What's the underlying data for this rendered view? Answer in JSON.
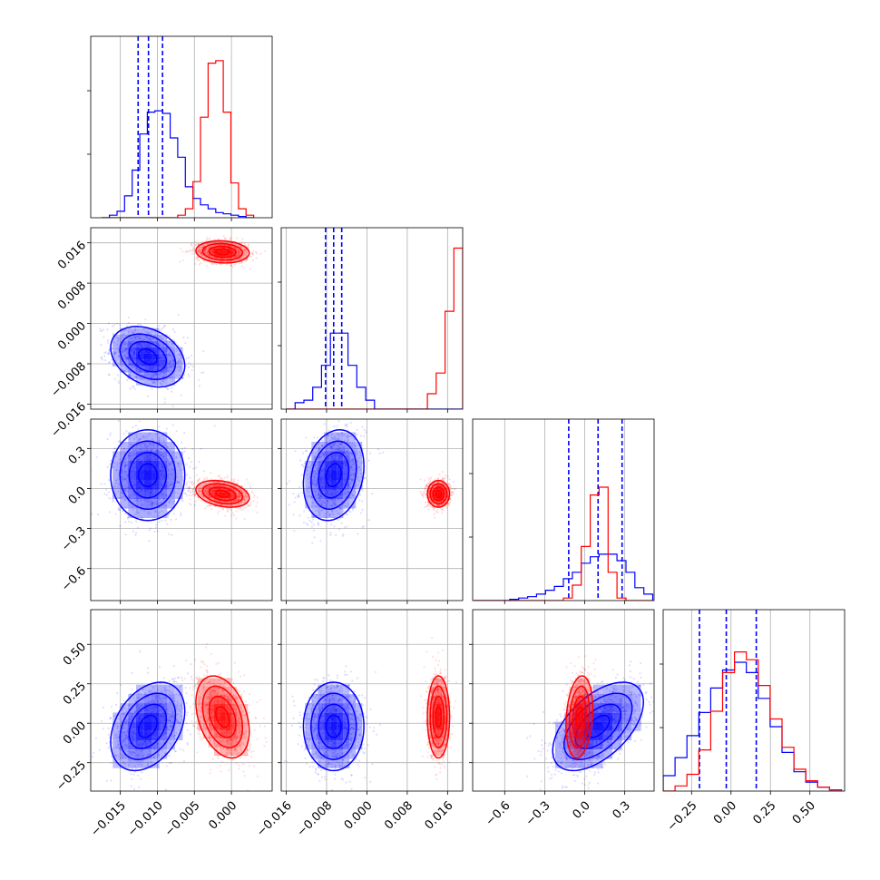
{
  "chart_data": {
    "type": "corner",
    "parameters": [
      {
        "index": 0,
        "range": [
          -0.019,
          0.0055
        ],
        "ticks": [
          -0.015,
          -0.01,
          -0.005,
          0.0
        ],
        "tick_labels": [
          "−0.015",
          "−0.010",
          "−0.005",
          "0.000"
        ]
      },
      {
        "index": 1,
        "range": [
          -0.017,
          0.019
        ],
        "ticks": [
          -0.016,
          -0.008,
          0.0,
          0.008,
          0.016
        ],
        "tick_labels": [
          "−0.016",
          "−0.008",
          "0.000",
          "0.008",
          "0.016"
        ]
      },
      {
        "index": 2,
        "range": [
          -0.84,
          0.52
        ],
        "ticks": [
          -0.6,
          -0.3,
          0.0,
          0.3
        ],
        "tick_labels": [
          "−0.6",
          "−0.3",
          "0.0",
          "0.3"
        ]
      },
      {
        "index": 3,
        "range": [
          -0.43,
          0.72
        ],
        "ticks": [
          -0.25,
          0.0,
          0.25,
          0.5
        ],
        "tick_labels": [
          "−0.25",
          "0.00",
          "0.25",
          "0.50"
        ]
      }
    ],
    "series": [
      {
        "color": "#0000ff",
        "quantiles": [
          [
            -0.0126,
            -0.0112,
            -0.0093
          ],
          [
            -0.0082,
            -0.0066,
            -0.005
          ],
          [
            -0.12,
            0.1,
            0.28
          ],
          [
            -0.2,
            -0.03,
            0.16
          ]
        ],
        "histograms": [
          {
            "edges": [
              -0.0175,
              0.003
            ],
            "counts": [
              0.0,
              0.02,
              0.05,
              0.17,
              0.37,
              0.65,
              0.82,
              0.83,
              0.81,
              0.62,
              0.47,
              0.24,
              0.15,
              0.1,
              0.07,
              0.04,
              0.03,
              0.02,
              0.01,
              0.0
            ]
          },
          {
            "edges": [
              -0.016,
              0.019
            ],
            "counts": [
              0.0,
              0.05,
              0.07,
              0.17,
              0.34,
              0.59,
              0.59,
              0.34,
              0.17,
              0.07,
              0.0,
              0.0,
              0.0,
              0.0,
              0.0,
              0.0,
              0.0,
              0.0,
              0.0,
              0.0
            ]
          },
          {
            "edges": [
              -0.83,
              0.51
            ],
            "counts": [
              0.0,
              0.0,
              0.0,
              0.0,
              0.01,
              0.02,
              0.03,
              0.05,
              0.08,
              0.11,
              0.17,
              0.22,
              0.29,
              0.34,
              0.36,
              0.36,
              0.31,
              0.22,
              0.1,
              0.05
            ]
          },
          {
            "edges": [
              -0.43,
              0.7
            ],
            "counts": [
              0.12,
              0.26,
              0.43,
              0.61,
              0.8,
              0.94,
              1.0,
              0.92,
              0.72,
              0.5,
              0.3,
              0.15,
              0.07,
              0.03,
              0.01
            ]
          }
        ]
      },
      {
        "color": "#ff0000",
        "quantiles": null,
        "histograms": [
          {
            "edges": [
              -0.0175,
              0.003
            ],
            "counts": [
              0.0,
              0.0,
              0.0,
              0.0,
              0.0,
              0.0,
              0.0,
              0.0,
              0.0,
              0.0,
              0.02,
              0.07,
              0.28,
              0.78,
              1.2,
              1.22,
              0.82,
              0.27,
              0.07,
              0.02
            ]
          },
          {
            "edges": [
              -0.016,
              0.019
            ],
            "counts": [
              0.0,
              0.0,
              0.0,
              0.0,
              0.0,
              0.0,
              0.0,
              0.0,
              0.0,
              0.0,
              0.0,
              0.0,
              0.0,
              0.0,
              0.0,
              0.0,
              0.12,
              0.28,
              0.76,
              1.25
            ]
          },
          {
            "edges": [
              -0.83,
              0.51
            ],
            "counts": [
              0.0,
              0.0,
              0.0,
              0.0,
              0.0,
              0.0,
              0.0,
              0.0,
              0.0,
              0.0,
              0.02,
              0.12,
              0.42,
              0.82,
              0.88,
              0.22,
              0.02,
              0.0,
              0.0,
              0.0
            ]
          },
          {
            "edges": [
              -0.43,
              0.7
            ],
            "counts": [
              0.0,
              0.04,
              0.13,
              0.32,
              0.62,
              0.92,
              1.08,
              1.02,
              0.82,
              0.56,
              0.34,
              0.17,
              0.08,
              0.03,
              0.01
            ]
          }
        ]
      }
    ],
    "clusters": [
      {
        "color": "#0000ff",
        "mean": [
          -0.0113,
          -0.0066,
          0.1,
          -0.02
        ],
        "std": [
          0.0025,
          0.003,
          0.17,
          0.14
        ],
        "corr": {
          "0-1": -0.3,
          "0-2": 0.0,
          "0-3": 0.35,
          "1-2": 0.2,
          "1-3": 0.0,
          "2-3": 0.55
        }
      },
      {
        "color": "#ff0000",
        "mean": [
          -0.0012,
          0.0142,
          -0.04,
          0.04
        ],
        "std": [
          0.0018,
          0.0011,
          0.05,
          0.13
        ],
        "corr": {
          "0-1": -0.1,
          "0-2": -0.3,
          "0-3": -0.35,
          "1-2": 0.0,
          "1-3": 0.0,
          "2-3": 0.2
        }
      }
    ],
    "grid": true,
    "xlabel": "",
    "ylabel": ""
  }
}
